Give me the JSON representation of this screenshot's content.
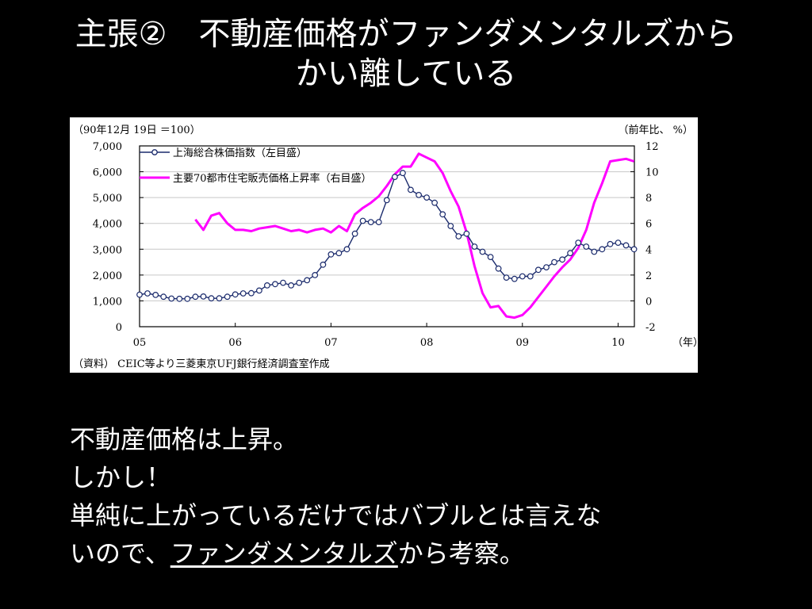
{
  "slide": {
    "title_line1": "主張②　不動産価格がファンダメンタルズから",
    "title_line2": "かい離している",
    "body": {
      "line1": "不動産価格は上昇。",
      "line2": "しかし！",
      "line3": "単純に上がっているだけではバブルとは言えな",
      "line4_prefix": "いので、",
      "line4_link": "ファンダメンタルズ",
      "line4_suffix": "から考察。"
    }
  },
  "chart_data": {
    "type": "line",
    "left_axis_note": "（90年12月 19日 ＝100）",
    "right_axis_note": "（前年比、 %）",
    "x_unit": "（年）",
    "source": "（資料） CEIC等より三菱東京UFJ銀行経済調査室作成",
    "x_ticks": [
      "05",
      "06",
      "07",
      "08",
      "09",
      "10"
    ],
    "y_left_ticks": [
      "0",
      "1,000",
      "2,000",
      "3,000",
      "4,000",
      "5,000",
      "6,000",
      "7,000"
    ],
    "y_right_ticks": [
      "-2",
      "0",
      "2",
      "4",
      "6",
      "8",
      "10",
      "12"
    ],
    "y_left_lim": [
      0,
      7000
    ],
    "y_right_lim": [
      -2,
      12
    ],
    "x_lim": [
      2005.0,
      2010.17
    ],
    "legend_position": "top-left",
    "colors": {
      "series1": "#1a2a6c",
      "series2": "#ff00ff"
    },
    "series": [
      {
        "name": "上海総合株価指数（左目盛）",
        "axis": "left",
        "marker": "circle",
        "x": [
          2005.0,
          2005.083,
          2005.167,
          2005.25,
          2005.333,
          2005.417,
          2005.5,
          2005.583,
          2005.667,
          2005.75,
          2005.833,
          2005.917,
          2006.0,
          2006.083,
          2006.167,
          2006.25,
          2006.333,
          2006.417,
          2006.5,
          2006.583,
          2006.667,
          2006.75,
          2006.833,
          2006.917,
          2007.0,
          2007.083,
          2007.167,
          2007.25,
          2007.333,
          2007.417,
          2007.5,
          2007.583,
          2007.667,
          2007.75,
          2007.833,
          2007.917,
          2008.0,
          2008.083,
          2008.167,
          2008.25,
          2008.333,
          2008.417,
          2008.5,
          2008.583,
          2008.667,
          2008.75,
          2008.833,
          2008.917,
          2009.0,
          2009.083,
          2009.167,
          2009.25,
          2009.333,
          2009.417,
          2009.5,
          2009.583,
          2009.667,
          2009.75,
          2009.833,
          2009.917,
          2010.0,
          2010.083,
          2010.167
        ],
        "values": [
          1240,
          1290,
          1230,
          1160,
          1090,
          1080,
          1080,
          1160,
          1170,
          1100,
          1100,
          1160,
          1250,
          1290,
          1300,
          1400,
          1600,
          1650,
          1700,
          1600,
          1700,
          1800,
          2000,
          2400,
          2800,
          2850,
          3000,
          3600,
          4100,
          4050,
          4050,
          4900,
          5800,
          5950,
          5300,
          5100,
          5000,
          4800,
          4350,
          3900,
          3500,
          3600,
          3100,
          2900,
          2700,
          2250,
          1900,
          1850,
          1950,
          1950,
          2200,
          2300,
          2500,
          2600,
          2850,
          3250,
          3100,
          2900,
          3000,
          3200,
          3250,
          3150,
          3000
        ]
      },
      {
        "name": "主要70都市住宅販売価格上昇率（右目盛）",
        "axis": "right",
        "marker": "none",
        "x": [
          2005.583,
          2005.667,
          2005.75,
          2005.833,
          2005.917,
          2006.0,
          2006.083,
          2006.167,
          2006.25,
          2006.333,
          2006.417,
          2006.5,
          2006.583,
          2006.667,
          2006.75,
          2006.833,
          2006.917,
          2007.0,
          2007.083,
          2007.167,
          2007.25,
          2007.333,
          2007.417,
          2007.5,
          2007.583,
          2007.667,
          2007.75,
          2007.833,
          2007.917,
          2008.0,
          2008.083,
          2008.167,
          2008.25,
          2008.333,
          2008.417,
          2008.5,
          2008.583,
          2008.667,
          2008.75,
          2008.833,
          2008.917,
          2009.0,
          2009.083,
          2009.167,
          2009.25,
          2009.333,
          2009.417,
          2009.5,
          2009.583,
          2009.667,
          2009.75,
          2009.833,
          2009.917,
          2010.0,
          2010.083,
          2010.167
        ],
        "values": [
          6.3,
          5.5,
          6.6,
          6.8,
          6.0,
          5.5,
          5.5,
          5.4,
          5.6,
          5.7,
          5.8,
          5.6,
          5.4,
          5.5,
          5.3,
          5.5,
          5.6,
          5.3,
          5.8,
          5.4,
          6.7,
          7.2,
          7.6,
          8.1,
          8.9,
          9.8,
          10.4,
          10.4,
          11.4,
          11.1,
          10.8,
          9.9,
          8.5,
          7.3,
          5.3,
          2.7,
          0.6,
          -0.5,
          -0.4,
          -1.2,
          -1.3,
          -1.1,
          -0.5,
          0.3,
          1.1,
          1.9,
          2.6,
          3.2,
          4.1,
          5.5,
          7.6,
          9.1,
          10.8,
          10.9,
          11.0,
          10.8
        ]
      }
    ]
  }
}
